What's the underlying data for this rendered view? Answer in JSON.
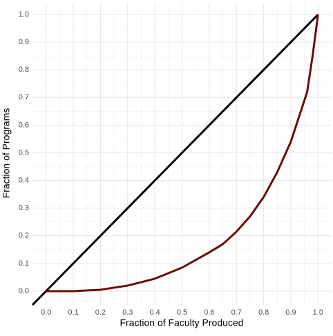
{
  "chart_data": {
    "type": "line",
    "xlabel": "Fraction of Faculty Produced",
    "ylabel": "Fraction of Programs",
    "xlim": [
      -0.05,
      1.05
    ],
    "ylim": [
      -0.05,
      1.04
    ],
    "xticks": [
      {
        "value": 0,
        "label": "0.0"
      },
      {
        "value": 0.1,
        "label": "0.1"
      },
      {
        "value": 0.2,
        "label": "0.2"
      },
      {
        "value": 0.3,
        "label": "0.3"
      },
      {
        "value": 0.4,
        "label": "0.4"
      },
      {
        "value": 0.5,
        "label": "0.5"
      },
      {
        "value": 0.6,
        "label": "0.6"
      },
      {
        "value": 0.7,
        "label": "0.7"
      },
      {
        "value": 0.8,
        "label": "0.8"
      },
      {
        "value": 0.9,
        "label": "0.9"
      },
      {
        "value": 1,
        "label": "1.0"
      }
    ],
    "yticks": [
      {
        "value": 0,
        "label": "0.0"
      },
      {
        "value": 0.1,
        "label": "0.1"
      },
      {
        "value": 0.2,
        "label": "0.2"
      },
      {
        "value": 0.3,
        "label": "0.3"
      },
      {
        "value": 0.4,
        "label": "0.4"
      },
      {
        "value": 0.5,
        "label": "0.5"
      },
      {
        "value": 0.6,
        "label": "0.6"
      },
      {
        "value": 0.7,
        "label": "0.7"
      },
      {
        "value": 0.8,
        "label": "0.8"
      },
      {
        "value": 0.9,
        "label": "0.9"
      },
      {
        "value": 1,
        "label": "1.0"
      }
    ],
    "grid": true,
    "minor_grid": true,
    "series": [
      {
        "color": "#000000",
        "x": [
          -0.05,
          1
        ],
        "values": [
          -0.05,
          1
        ]
      },
      {
        "color": "#6b0a0a",
        "x": [
          0,
          0.1,
          0.2,
          0.3,
          0.4,
          0.5,
          0.6,
          0.65,
          0.7,
          0.75,
          0.8,
          0.85,
          0.9,
          0.93,
          0.96,
          0.98,
          1
        ],
        "values": [
          0,
          0,
          0.005,
          0.02,
          0.045,
          0.085,
          0.14,
          0.17,
          0.215,
          0.27,
          0.34,
          0.43,
          0.54,
          0.63,
          0.72,
          0.85,
          1
        ]
      }
    ]
  }
}
